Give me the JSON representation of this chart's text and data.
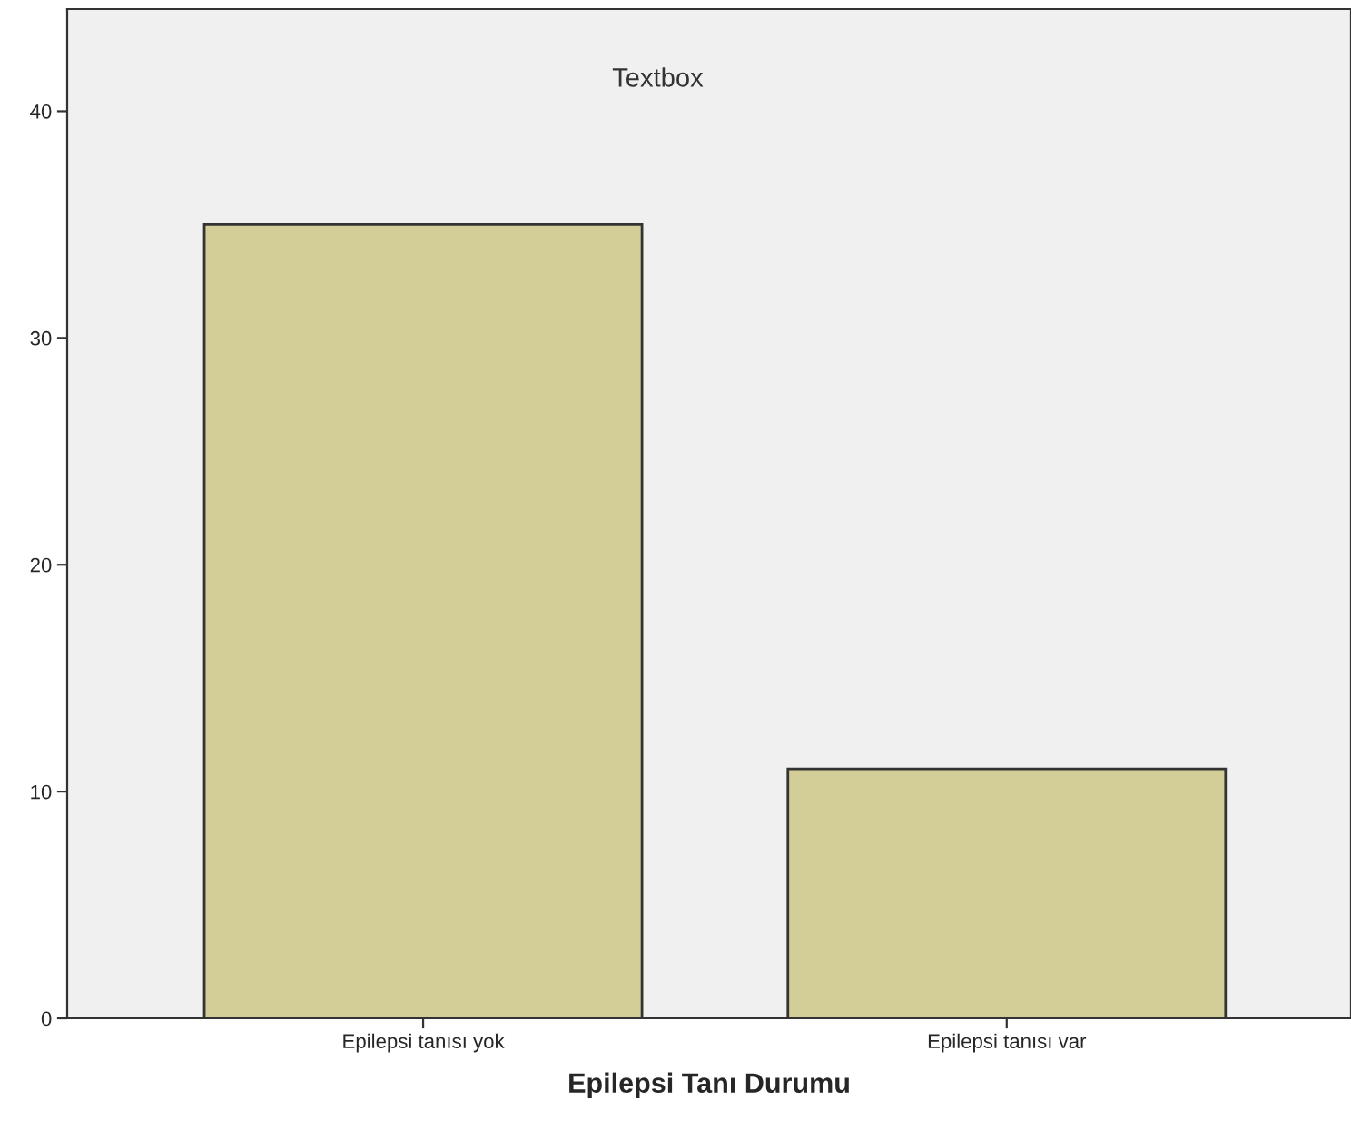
{
  "chart_data": {
    "type": "bar",
    "categories": [
      "Epilepsi tanısı yok",
      "Epilepsi tanısı var"
    ],
    "values": [
      35,
      11
    ],
    "color": "#d3ce98",
    "xlabel": "Epilepsi Tanı Durumu",
    "annotations": [
      "Textbox"
    ],
    "ylim": [
      0,
      44.5
    ],
    "yticks": [
      0,
      10,
      20,
      30,
      40
    ],
    "grid": false,
    "legend": false
  }
}
